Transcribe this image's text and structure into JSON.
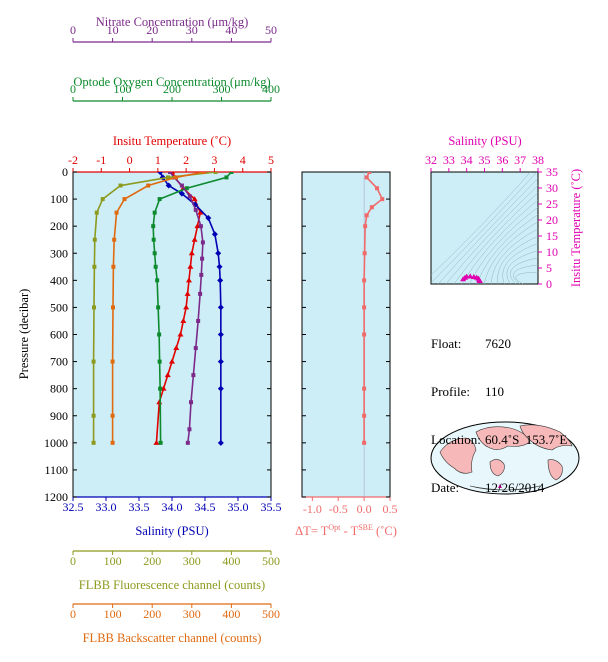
{
  "colors": {
    "nitrate": "#7b2a8a",
    "oxygen": "#0e8a2e",
    "temperature": "#e00000",
    "salinity": "#0000b4",
    "fluorescence": "#8c9a1e",
    "backscatter": "#e06a10",
    "delta": "#f06a6a",
    "ts": "#e000b0",
    "plot_bg": "#cdeef6",
    "land": "#f6b8b8",
    "ocean": "#e8f7fb"
  },
  "axes": {
    "nitrate": {
      "label": "Nitrate Concentration (μm/kg)",
      "ticks": [
        "0",
        "10",
        "20",
        "30",
        "40",
        "50"
      ],
      "range": [
        0,
        50
      ]
    },
    "oxygen": {
      "label": "Optode Oxygen Concentration (μm/kg)",
      "ticks": [
        "0",
        "100",
        "200",
        "300",
        "400"
      ],
      "range": [
        0,
        400
      ]
    },
    "temperature": {
      "label": "Insitu Temperature (˚C)",
      "ticks": [
        "-2",
        "-1",
        "0",
        "1",
        "2",
        "3",
        "4",
        "5"
      ],
      "range": [
        -2,
        5
      ]
    },
    "salinity": {
      "label": "Salinity (PSU)",
      "ticks": [
        "32.5",
        "33.0",
        "33.5",
        "34.0",
        "34.5",
        "35.0",
        "35.5"
      ],
      "range": [
        32.5,
        35.5
      ]
    },
    "pressure": {
      "label": "Pressure (decibar)",
      "ticks": [
        "0",
        "100",
        "200",
        "300",
        "400",
        "500",
        "600",
        "700",
        "800",
        "900",
        "1000",
        "1100",
        "1200"
      ],
      "range": [
        0,
        1200
      ]
    },
    "fluorescence": {
      "label": "FLBB Fluorescence channel (counts)",
      "ticks": [
        "0",
        "100",
        "200",
        "300",
        "400",
        "500"
      ],
      "range": [
        0,
        500
      ]
    },
    "backscatter": {
      "label": "FLBB Backscatter channel (counts)",
      "ticks": [
        "0",
        "100",
        "200",
        "300",
        "400",
        "500"
      ],
      "range": [
        0,
        500
      ]
    },
    "delta": {
      "label": "ΔT= T",
      "sup1": "Opt",
      "mid": " - T",
      "sup2": "SBE",
      "tail": " (˚C)",
      "ticks": [
        "-1.0",
        "-0.5",
        "0.0",
        "0.5"
      ],
      "range": [
        -1.2,
        0.5
      ]
    },
    "ts_sal": {
      "label": "Salinity (PSU)",
      "ticks": [
        "32",
        "33",
        "34",
        "35",
        "36",
        "37",
        "38"
      ],
      "range": [
        32,
        38
      ]
    },
    "ts_temp": {
      "label": "Insitu Temperature (˚C)",
      "ticks": [
        "0",
        "5",
        "10",
        "15",
        "20",
        "25",
        "30",
        "35"
      ],
      "range": [
        0,
        35
      ]
    }
  },
  "info": {
    "float_label": "Float:",
    "float": "7620",
    "profile_label": "Profile:",
    "profile": "110",
    "location_label": "Location:",
    "location": "60.4˚S  153.7˚E",
    "date_label": "Date:",
    "date": "12/26/2014"
  },
  "chart_data": [
    {
      "type": "line",
      "title": "",
      "y_axis": "Pressure (decibar)",
      "ylim": [
        1200,
        0
      ],
      "series": [
        {
          "name": "Insitu Temperature (˚C)",
          "axis": "temperature",
          "x": [
            1.5,
            1.6,
            1.9,
            2.3,
            2.5,
            2.4,
            2.3,
            2.2,
            2.15,
            2.1,
            2.05,
            2.0,
            1.9,
            1.8,
            1.65,
            1.5,
            1.35,
            1.2,
            1.05,
            0.95
          ],
          "y": [
            0,
            20,
            60,
            100,
            150,
            200,
            250,
            300,
            350,
            400,
            450,
            500,
            550,
            600,
            650,
            700,
            750,
            800,
            850,
            1000
          ]
        },
        {
          "name": "Salinity (PSU)",
          "axis": "salinity",
          "x": [
            33.82,
            33.86,
            33.95,
            34.15,
            34.35,
            34.55,
            34.65,
            34.7,
            34.72,
            34.73,
            34.74,
            34.74,
            34.74,
            34.74,
            34.74
          ],
          "y": [
            0,
            20,
            50,
            80,
            120,
            170,
            230,
            300,
            350,
            400,
            500,
            600,
            700,
            800,
            1000
          ]
        },
        {
          "name": "Optode Oxygen Concentration (μm/kg)",
          "axis": "oxygen",
          "x": [
            320,
            310,
            230,
            175,
            165,
            162,
            163,
            165,
            167,
            170,
            172,
            174,
            175,
            176,
            177
          ],
          "y": [
            0,
            20,
            60,
            100,
            150,
            200,
            250,
            300,
            350,
            400,
            500,
            600,
            700,
            800,
            1000
          ]
        },
        {
          "name": "Nitrate Concentration (μm/kg)",
          "axis": "nitrate",
          "x": [
            24.5,
            25.5,
            27.5,
            29.5,
            31.0,
            32.3,
            32.8,
            32.6,
            32.4,
            32.1,
            31.6,
            31.0,
            30.4,
            29.8,
            29.4,
            29.0
          ],
          "y": [
            0,
            20,
            50,
            90,
            140,
            200,
            260,
            320,
            380,
            450,
            550,
            650,
            750,
            850,
            950,
            1000
          ]
        },
        {
          "name": "FLBB Fluorescence channel (counts)",
          "axis": "fluorescence",
          "x": [
            360,
            240,
            120,
            75,
            60,
            55,
            54,
            53,
            52,
            52,
            52
          ],
          "y": [
            0,
            20,
            50,
            100,
            150,
            250,
            350,
            500,
            700,
            900,
            1000
          ]
        },
        {
          "name": "FLBB Backscatter channel (counts)",
          "axis": "backscatter",
          "x": [
            330,
            260,
            190,
            130,
            110,
            104,
            102,
            101,
            100,
            100,
            100
          ],
          "y": [
            0,
            20,
            50,
            100,
            150,
            250,
            350,
            500,
            700,
            900,
            1000
          ]
        }
      ]
    },
    {
      "type": "line",
      "title": "",
      "xlabel": "ΔT= TOpt - TSBE (˚C)",
      "ylim": [
        1200,
        0
      ],
      "series": [
        {
          "x": [
            0.1,
            0.05,
            0.25,
            0.35,
            0.15,
            0.05,
            0.02,
            0.01,
            0.0,
            0.0,
            0.0,
            0.0,
            0.0,
            0.0
          ],
          "y": [
            0,
            20,
            60,
            100,
            130,
            160,
            200,
            300,
            400,
            500,
            600,
            800,
            900,
            1000
          ]
        }
      ]
    },
    {
      "type": "scatter",
      "title": "",
      "xlabel": "Salinity (PSU)",
      "ylabel": "Insitu Temperature (˚C)",
      "xlim": [
        32,
        38
      ],
      "ylim": [
        0,
        35
      ],
      "series": [
        {
          "x": [
            33.8,
            33.9,
            34.0,
            34.2,
            34.4,
            34.55,
            34.65,
            34.7,
            34.72,
            34.74
          ],
          "y": [
            1.5,
            1.9,
            2.3,
            2.4,
            2.2,
            2.0,
            1.7,
            1.3,
            1.1,
            0.95
          ]
        }
      ]
    }
  ]
}
